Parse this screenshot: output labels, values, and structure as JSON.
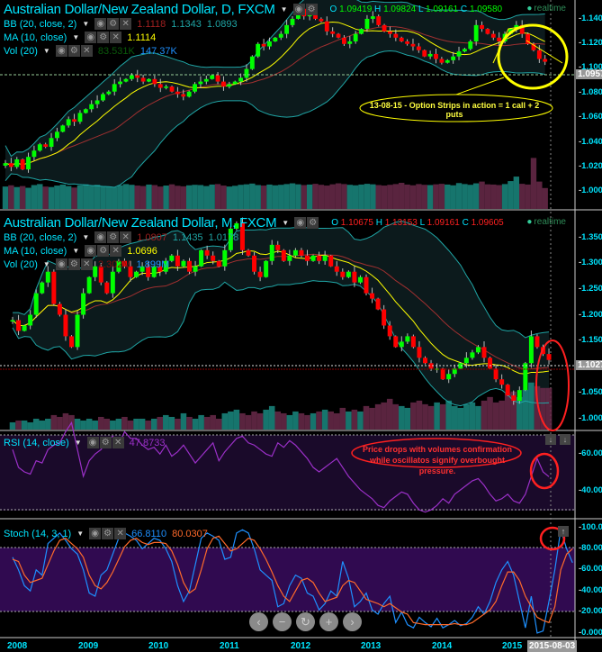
{
  "colors": {
    "up": "#00ff00",
    "down": "#ff0000",
    "bb": "#1fa5a5",
    "ma": "#ffff00",
    "rsi": "#9b30c8",
    "stochK": "#1e90ff",
    "stochD": "#ff6a2a",
    "band": "#1a0a2a",
    "stochBand": "#300a50"
  },
  "daily": {
    "title": "Australian Dollar/New Zealand Dollar, D, FXCM",
    "ohlc": {
      "o_label": "O",
      "o": "1.09419",
      "h_label": "H",
      "h": "1.09824",
      "l_label": "L",
      "l": "1.09161",
      "c_label": "C",
      "c": "1.09580"
    },
    "realtime": "realtime",
    "bb": {
      "label": "BB (20, close, 2)",
      "v1": "1.1118",
      "v2": "1.1343",
      "v3": "1.0893"
    },
    "ma": {
      "label": "MA (10, close)",
      "v": "1.1114"
    },
    "vol": {
      "label": "Vol (20)",
      "v1": "83.531K",
      "v2": "147.37K"
    },
    "axis": [
      "1.14000",
      "1.12000",
      "1.10000",
      "1.08000",
      "1.06000",
      "1.04000",
      "1.02000",
      "1.00000"
    ],
    "current": "1.09571",
    "annotation": "13-08-15 - Option Strips in action = 1 call + 2 puts"
  },
  "monthly": {
    "title": "Australian Dollar/New Zealand Dollar, M, FXCM",
    "ohlc": {
      "o_label": "O",
      "o": "1.10675",
      "h_label": "H",
      "h": "1.13153",
      "l_label": "L",
      "l": "1.09161",
      "c_label": "C",
      "c": "1.09605"
    },
    "realtime": "realtime",
    "bb": {
      "label": "BB (20, close, 2)",
      "v1": "1.0807",
      "v2": "1.1435",
      "v3": "1.0178"
    },
    "ma": {
      "label": "MA (10, close)",
      "v": "1.0696"
    },
    "vol": {
      "label": "Vol (20)",
      "v1": "2.302M",
      "v2": "1.899M"
    },
    "axis": [
      "1.35000",
      "1.30000",
      "1.25000",
      "1.20000",
      "1.15000",
      "1.05000",
      "1.00000"
    ],
    "current": "1.10270"
  },
  "rsi": {
    "label": "RSI (14, close)",
    "v": "47.8733",
    "axis": [
      "60.00000",
      "40.00000"
    ],
    "annotation": "Price drops with volumes confirmation while oscillatos signify overbought pressure."
  },
  "stoch": {
    "label": "Stoch (14, 3, 1)",
    "k": "66.8110",
    "d": "80.0307",
    "axis": [
      "100.0000",
      "80.0000",
      "60.0000",
      "40.0000",
      "20.0000",
      "0.0000"
    ]
  },
  "xaxis": {
    "years": [
      "2008",
      "2009",
      "2010",
      "2011",
      "2012",
      "2013",
      "2014",
      "2015"
    ],
    "current_date": "2015-08-03"
  },
  "nav": [
    "‹",
    "−",
    "↻",
    "+",
    "›"
  ],
  "chart_data": [
    {
      "type": "candlestick",
      "name": "daily",
      "ylim": [
        0.99,
        1.145
      ],
      "close": [
        1.015,
        1.012,
        1.018,
        1.01,
        1.02,
        1.025,
        1.03,
        1.028,
        1.035,
        1.04,
        1.045,
        1.05,
        1.048,
        1.055,
        1.058,
        1.062,
        1.065,
        1.07,
        1.072,
        1.078,
        1.08,
        1.082,
        1.085,
        1.083,
        1.08,
        1.082,
        1.078,
        1.075,
        1.076,
        1.072,
        1.07,
        1.068,
        1.072,
        1.078,
        1.08,
        1.082,
        1.085,
        1.08,
        1.076,
        1.078,
        1.08,
        1.083,
        1.09,
        1.1,
        1.11,
        1.108,
        1.112,
        1.115,
        1.118,
        1.125,
        1.13,
        1.138,
        1.132,
        1.135,
        1.13,
        1.128,
        1.12,
        1.118,
        1.115,
        1.11,
        1.112,
        1.118,
        1.122,
        1.13,
        1.132,
        1.125,
        1.12,
        1.118,
        1.115,
        1.112,
        1.11,
        1.108,
        1.105,
        1.1,
        1.102,
        1.098,
        1.095,
        1.097,
        1.1,
        1.104,
        1.106,
        1.112,
        1.125,
        1.122,
        1.118,
        1.115,
        1.112,
        1.118,
        1.122,
        1.125,
        1.118,
        1.11,
        1.105,
        1.098,
        1.0958
      ],
      "volume": [
        90,
        95,
        88,
        92,
        85,
        96,
        100,
        90,
        88,
        94,
        98,
        92,
        86,
        95,
        99,
        93,
        97,
        92,
        90,
        88,
        95,
        100,
        97,
        94,
        92,
        98,
        96,
        90,
        94,
        99,
        93,
        91,
        95,
        97,
        96,
        92,
        98,
        100,
        94,
        90,
        93,
        97,
        99,
        102,
        96,
        94,
        98,
        95,
        97,
        100,
        103,
        99,
        96,
        98,
        101,
        97,
        94,
        99,
        103,
        100,
        97,
        95,
        98,
        101,
        99,
        96,
        94,
        97,
        100,
        105,
        98,
        95,
        100,
        97,
        96,
        99,
        101,
        98,
        95,
        104,
        100,
        97,
        103,
        110,
        99,
        98,
        96,
        100,
        112,
        130,
        101,
        98,
        205,
        110,
        84
      ]
    },
    {
      "type": "candlestick",
      "name": "monthly",
      "ylim": [
        0.98,
        1.37
      ],
      "close": [
        1.17,
        1.15,
        1.16,
        1.18,
        1.22,
        1.24,
        1.26,
        1.2,
        1.18,
        1.14,
        1.12,
        1.18,
        1.22,
        1.25,
        1.27,
        1.24,
        1.22,
        1.26,
        1.28,
        1.27,
        1.25,
        1.26,
        1.27,
        1.25,
        1.27,
        1.26,
        1.28,
        1.29,
        1.27,
        1.28,
        1.26,
        1.27,
        1.3,
        1.29,
        1.28,
        1.27,
        1.3,
        1.34,
        1.35,
        1.3,
        1.29,
        1.26,
        1.25,
        1.28,
        1.31,
        1.3,
        1.28,
        1.29,
        1.3,
        1.29,
        1.28,
        1.29,
        1.28,
        1.29,
        1.27,
        1.26,
        1.25,
        1.26,
        1.24,
        1.25,
        1.22,
        1.21,
        1.19,
        1.16,
        1.14,
        1.12,
        1.13,
        1.14,
        1.12,
        1.1,
        1.09,
        1.08,
        1.08,
        1.06,
        1.07,
        1.08,
        1.09,
        1.1,
        1.11,
        1.12,
        1.1,
        1.08,
        1.06,
        1.05,
        1.03,
        1.02,
        1.04,
        1.09,
        1.14,
        1.12,
        1.107,
        1.096
      ],
      "volume": [
        0.4,
        0.5,
        0.5,
        0.4,
        0.6,
        0.5,
        0.6,
        0.8,
        0.7,
        0.9,
        0.8,
        0.6,
        0.5,
        0.6,
        0.5,
        0.7,
        0.6,
        0.5,
        0.6,
        0.7,
        0.5,
        0.6,
        0.6,
        0.5,
        0.6,
        0.7,
        0.8,
        0.7,
        0.6,
        0.9,
        0.7,
        0.6,
        0.8,
        0.7,
        0.8,
        0.6,
        0.9,
        1.0,
        1.1,
        0.9,
        0.8,
        1.0,
        0.9,
        1.1,
        1.3,
        1.0,
        0.9,
        0.8,
        1.0,
        0.9,
        0.8,
        0.9,
        1.0,
        1.1,
        1.0,
        0.9,
        1.2,
        1.0,
        1.1,
        1.0,
        1.3,
        1.2,
        1.4,
        1.5,
        1.7,
        1.4,
        1.3,
        1.2,
        1.5,
        1.6,
        1.4,
        1.3,
        1.5,
        1.4,
        1.6,
        1.3,
        1.2,
        1.4,
        1.5,
        1.3,
        1.6,
        1.8,
        1.5,
        1.6,
        2.0,
        2.1,
        1.8,
        2.2,
        2.6,
        2.4,
        2.3,
        2.302
      ]
    },
    {
      "type": "line",
      "name": "RSI (14, close)",
      "ylim": [
        25,
        75
      ],
      "values": [
        60,
        52,
        50,
        49,
        55,
        54,
        60,
        62,
        63,
        68,
        72,
        60,
        48,
        55,
        58,
        60,
        64,
        66,
        62,
        68,
        65,
        65,
        62,
        60,
        61,
        58,
        62,
        57,
        59,
        62,
        58,
        54,
        57,
        60,
        63,
        55,
        59,
        62,
        65,
        66,
        63,
        62,
        60,
        58,
        57,
        63,
        61,
        64,
        62,
        59,
        56,
        52,
        50,
        52,
        54,
        56,
        52,
        48,
        45,
        42,
        40,
        38,
        35,
        34,
        37,
        39,
        41,
        40,
        36,
        33,
        32,
        33,
        35,
        38,
        36,
        40,
        42,
        44,
        46,
        47,
        44,
        40,
        37,
        38,
        40,
        37,
        36,
        40,
        48,
        56,
        50,
        47.87
      ]
    },
    {
      "type": "line",
      "name": "Stoch (14, 3, 1)",
      "ylim": [
        0,
        100
      ],
      "k": [
        72,
        60,
        45,
        40,
        60,
        55,
        85,
        90,
        95,
        88,
        80,
        75,
        60,
        38,
        35,
        55,
        60,
        75,
        90,
        95,
        92,
        88,
        80,
        85,
        90,
        88,
        80,
        68,
        45,
        30,
        40,
        65,
        90,
        95,
        92,
        88,
        70,
        72,
        95,
        98,
        95,
        80,
        60,
        55,
        50,
        25,
        28,
        45,
        55,
        52,
        38,
        35,
        22,
        28,
        40,
        35,
        68,
        52,
        25,
        30,
        38,
        22,
        18,
        28,
        35,
        10,
        20,
        8,
        5,
        15,
        10,
        6,
        14,
        5,
        8,
        12,
        7,
        9,
        15,
        25,
        18,
        30,
        48,
        60,
        68,
        55,
        30,
        5,
        35,
        0,
        2,
        30,
        60,
        98,
        80,
        66.81
      ],
      "d": [
        70,
        68,
        55,
        48,
        50,
        52,
        65,
        78,
        88,
        90,
        85,
        80,
        72,
        55,
        45,
        42,
        48,
        58,
        70,
        82,
        88,
        90,
        86,
        84,
        86,
        86,
        85,
        78,
        65,
        48,
        38,
        42,
        60,
        80,
        90,
        92,
        85,
        78,
        80,
        85,
        90,
        88,
        80,
        70,
        58,
        45,
        35,
        30,
        40,
        50,
        52,
        48,
        38,
        30,
        32,
        34,
        45,
        50,
        48,
        40,
        32,
        30,
        28,
        25,
        28,
        24,
        20,
        18,
        10,
        9,
        8,
        8,
        8,
        8,
        8,
        9,
        8,
        8,
        10,
        14,
        18,
        22,
        30,
        45,
        58,
        58,
        50,
        35,
        25,
        15,
        12,
        10,
        25,
        60,
        75,
        80.03
      ]
    }
  ]
}
